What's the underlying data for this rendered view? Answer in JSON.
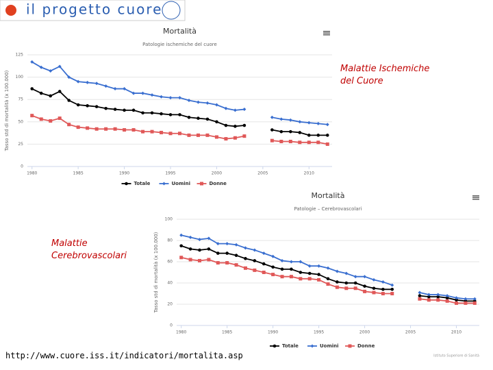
{
  "header": {
    "logo_text": "il progetto cuore"
  },
  "annotations": [
    "Malattie Ischemiche del Cuore",
    "Malattie Cerebrovascolari"
  ],
  "footer_url": "http://www.cuore.iss.it/indicatori/mortalita.asp",
  "chart_data": [
    {
      "type": "line",
      "title": "Mortalità",
      "subtitle": "Patologie ischemiche del cuore",
      "y_label": "Tasso std di mortalità (x 100.000)",
      "x": [
        1980,
        1981,
        1982,
        1983,
        1984,
        1985,
        1986,
        1987,
        1988,
        1989,
        1990,
        1991,
        1992,
        1993,
        1994,
        1995,
        1996,
        1997,
        1998,
        1999,
        2000,
        2001,
        2002,
        2003,
        2004,
        2005,
        2006,
        2007,
        2008,
        2009,
        2010,
        2011,
        2012
      ],
      "xlim": [
        1979.5,
        2012.5
      ],
      "xticks": [
        1980,
        1985,
        1990,
        1995,
        2000,
        2005,
        2010
      ],
      "ylim": [
        0,
        125
      ],
      "yticks": [
        0,
        25,
        50,
        75,
        100,
        125
      ],
      "grid": true,
      "series": [
        {
          "name": "Totale",
          "color": "#000000",
          "marker": "circle",
          "values": [
            87,
            82,
            79,
            84,
            74,
            69,
            68,
            67,
            65,
            64,
            63,
            63,
            60,
            60,
            59,
            58,
            58,
            55,
            54,
            53,
            50,
            46,
            45,
            46,
            null,
            null,
            41,
            39,
            39,
            38,
            35,
            35,
            35
          ]
        },
        {
          "name": "Uomini",
          "color": "#3a6fd0",
          "marker": "diamond",
          "values": [
            117,
            111,
            107,
            112,
            100,
            95,
            94,
            93,
            90,
            87,
            87,
            82,
            82,
            80,
            78,
            77,
            77,
            74,
            72,
            71,
            69,
            65,
            63,
            64,
            null,
            null,
            55,
            53,
            52,
            50,
            49,
            48,
            47
          ]
        },
        {
          "name": "Donne",
          "color": "#e05858",
          "marker": "square",
          "values": [
            57,
            53,
            51,
            54,
            47,
            44,
            43,
            42,
            42,
            42,
            41,
            41,
            39,
            39,
            38,
            37,
            37,
            35,
            35,
            35,
            33,
            31,
            32,
            34,
            null,
            null,
            29,
            28,
            28,
            27,
            27,
            27,
            25
          ]
        }
      ]
    },
    {
      "type": "line",
      "title": "Mortalità",
      "subtitle": "Patologie – Cerebrovascolari",
      "y_label": "Tasso std di mortalità (x 100.000)",
      "credit": "Istituto Superiore di Sanità",
      "x": [
        1980,
        1981,
        1982,
        1983,
        1984,
        1985,
        1986,
        1987,
        1988,
        1989,
        1990,
        1991,
        1992,
        1993,
        1994,
        1995,
        1996,
        1997,
        1998,
        1999,
        2000,
        2001,
        2002,
        2003,
        2004,
        2005,
        2006,
        2007,
        2008,
        2009,
        2010,
        2011,
        2012
      ],
      "xlim": [
        1979.5,
        2012.5
      ],
      "xticks": [
        1980,
        1985,
        1990,
        1995,
        2000,
        2005,
        2010
      ],
      "ylim": [
        0,
        100
      ],
      "yticks": [
        0,
        20,
        40,
        60,
        80,
        100
      ],
      "grid": true,
      "series": [
        {
          "name": "Totale",
          "color": "#000000",
          "marker": "circle",
          "values": [
            75,
            72,
            71,
            72,
            68,
            68,
            66,
            63,
            61,
            58,
            55,
            53,
            53,
            50,
            49,
            48,
            44,
            41,
            40,
            40,
            37,
            35,
            34,
            34,
            null,
            null,
            28,
            27,
            27,
            26,
            24,
            23,
            23
          ]
        },
        {
          "name": "Uomini",
          "color": "#3a6fd0",
          "marker": "diamond",
          "values": [
            85,
            83,
            81,
            82,
            77,
            77,
            76,
            73,
            71,
            68,
            65,
            61,
            60,
            60,
            56,
            56,
            54,
            51,
            49,
            46,
            46,
            43,
            41,
            38,
            null,
            null,
            31,
            29,
            29,
            28,
            26,
            25,
            25
          ]
        },
        {
          "name": "Donne",
          "color": "#e05858",
          "marker": "square",
          "values": [
            64,
            62,
            61,
            62,
            59,
            59,
            57,
            54,
            52,
            50,
            48,
            46,
            46,
            44,
            44,
            43,
            39,
            36,
            35,
            35,
            32,
            31,
            30,
            30,
            null,
            null,
            25,
            24,
            24,
            23,
            21,
            21,
            21
          ]
        }
      ]
    }
  ]
}
